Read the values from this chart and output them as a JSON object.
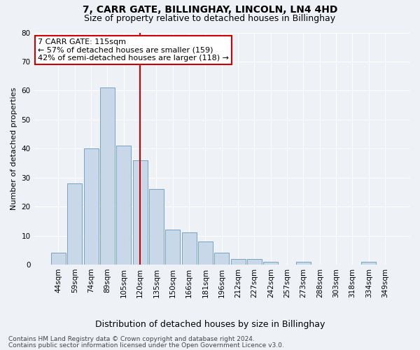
{
  "title": "7, CARR GATE, BILLINGHAY, LINCOLN, LN4 4HD",
  "subtitle": "Size of property relative to detached houses in Billinghay",
  "xlabel": "Distribution of detached houses by size in Billinghay",
  "ylabel": "Number of detached properties",
  "bar_color": "#c8d8e8",
  "bar_edge_color": "#6699bb",
  "categories": [
    "44sqm",
    "59sqm",
    "74sqm",
    "89sqm",
    "105sqm",
    "120sqm",
    "135sqm",
    "150sqm",
    "166sqm",
    "181sqm",
    "196sqm",
    "212sqm",
    "227sqm",
    "242sqm",
    "257sqm",
    "273sqm",
    "288sqm",
    "303sqm",
    "318sqm",
    "334sqm",
    "349sqm"
  ],
  "values": [
    4,
    28,
    40,
    61,
    41,
    36,
    26,
    12,
    11,
    8,
    4,
    2,
    2,
    1,
    0,
    1,
    0,
    0,
    0,
    1,
    0
  ],
  "vline_x": 5.0,
  "vline_color": "#cc0000",
  "annotation_line1": "7 CARR GATE: 115sqm",
  "annotation_line2": "← 57% of detached houses are smaller (159)",
  "annotation_line3": "42% of semi-detached houses are larger (118) →",
  "annotation_box_color": "#ffffff",
  "annotation_box_edge": "#cc0000",
  "ylim": [
    0,
    80
  ],
  "yticks": [
    0,
    10,
    20,
    30,
    40,
    50,
    60,
    70,
    80
  ],
  "footer1": "Contains HM Land Registry data © Crown copyright and database right 2024.",
  "footer2": "Contains public sector information licensed under the Open Government Licence v3.0.",
  "background_color": "#eef2f7",
  "grid_color": "#ffffff",
  "title_fontsize": 10,
  "subtitle_fontsize": 9,
  "ylabel_fontsize": 8,
  "xlabel_fontsize": 9,
  "tick_fontsize": 7.5,
  "annotation_fontsize": 8,
  "footer_fontsize": 6.5
}
